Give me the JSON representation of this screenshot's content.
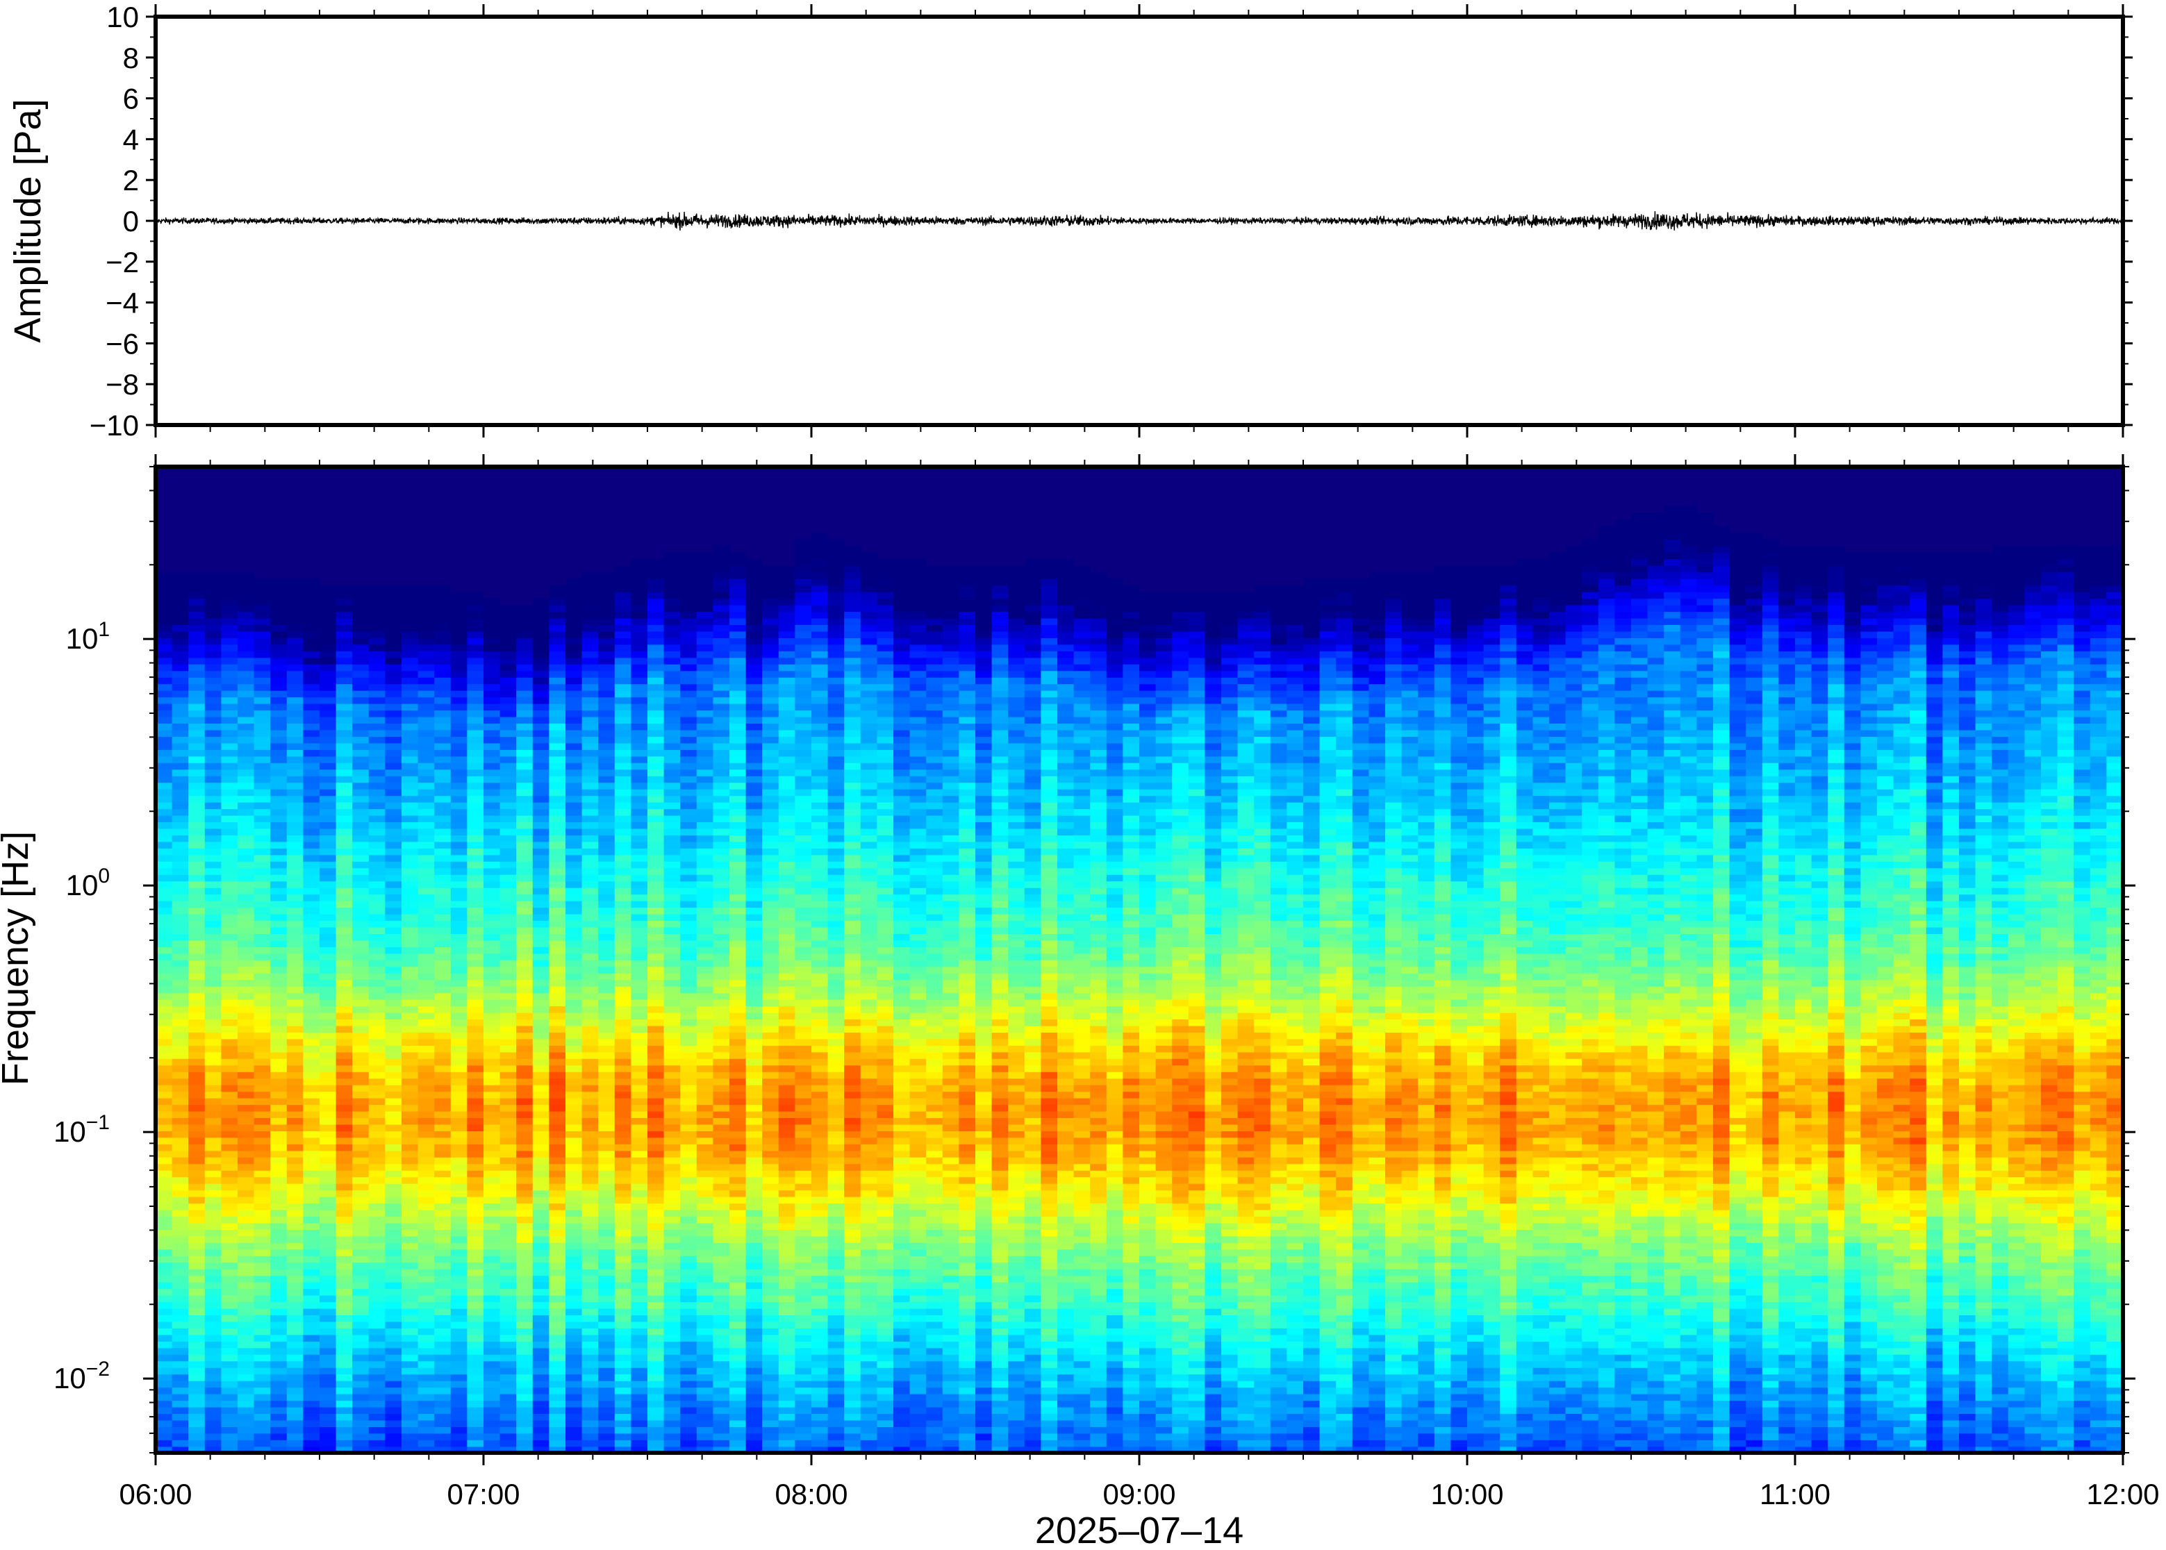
{
  "chart_data": [
    {
      "type": "line",
      "ylabel": "Amplitude [Pa]",
      "ylim": [
        -10,
        10
      ],
      "y_ticks": [
        "10",
        "8",
        "6",
        "4",
        "2",
        "0",
        "−2",
        "−4",
        "−6",
        "−8",
        "−10"
      ],
      "x_range": [
        "06:00",
        "12:00"
      ],
      "series": [
        {
          "x_hours": [
            6.0,
            6.5,
            7.0,
            7.5,
            7.6,
            7.7,
            8.0,
            8.5,
            8.8,
            9.0,
            9.5,
            10.0,
            10.5,
            10.6,
            10.75,
            11.0,
            11.5,
            12.0
          ],
          "envelope": [
            0.15,
            0.15,
            0.15,
            0.2,
            0.4,
            0.35,
            0.3,
            0.2,
            0.3,
            0.15,
            0.15,
            0.25,
            0.35,
            0.45,
            0.35,
            0.25,
            0.2,
            0.15
          ]
        }
      ],
      "grid": false
    },
    {
      "type": "heatmap",
      "ylabel": "Frequency [Hz]",
      "xlabel": "2025–07–14",
      "yscale": "log",
      "ylim": [
        0.005,
        50
      ],
      "y_ticks": [
        {
          "value": 10,
          "base": "10",
          "exp": "1"
        },
        {
          "value": 1,
          "base": "10",
          "exp": "0"
        },
        {
          "value": 0.1,
          "base": "10",
          "exp": "−1"
        },
        {
          "value": 0.01,
          "base": "10",
          "exp": "−2"
        }
      ],
      "x_ticks": [
        "06:00",
        "07:00",
        "08:00",
        "09:00",
        "10:00",
        "11:00",
        "12:00"
      ],
      "colormap": "jet",
      "colors": {
        "low": "#0a007f",
        "mid": "#7fffb0",
        "high": "#ff6a10"
      },
      "x_hours": [
        6.0,
        6.25,
        6.5,
        6.75,
        7.0,
        7.1,
        7.25,
        7.5,
        7.75,
        7.9,
        8.0,
        8.25,
        8.5,
        8.75,
        9.0,
        9.25,
        9.5,
        9.75,
        10.0,
        10.25,
        10.5,
        10.65,
        10.8,
        11.0,
        11.25,
        11.5,
        11.75,
        12.0
      ],
      "upper_energy_edge_hz": [
        13,
        13,
        12,
        12,
        11,
        9,
        12,
        15,
        17,
        13,
        19,
        15,
        14,
        15,
        11,
        11,
        12,
        13,
        14,
        15,
        22,
        25,
        20,
        17,
        16,
        16,
        17,
        17
      ],
      "peak_band_hz": [
        0.04,
        0.3
      ],
      "peak_band_color": "#ffb050",
      "low_band_hz": [
        0.005,
        0.02
      ],
      "low_band_color": "#3fb8ff"
    }
  ]
}
